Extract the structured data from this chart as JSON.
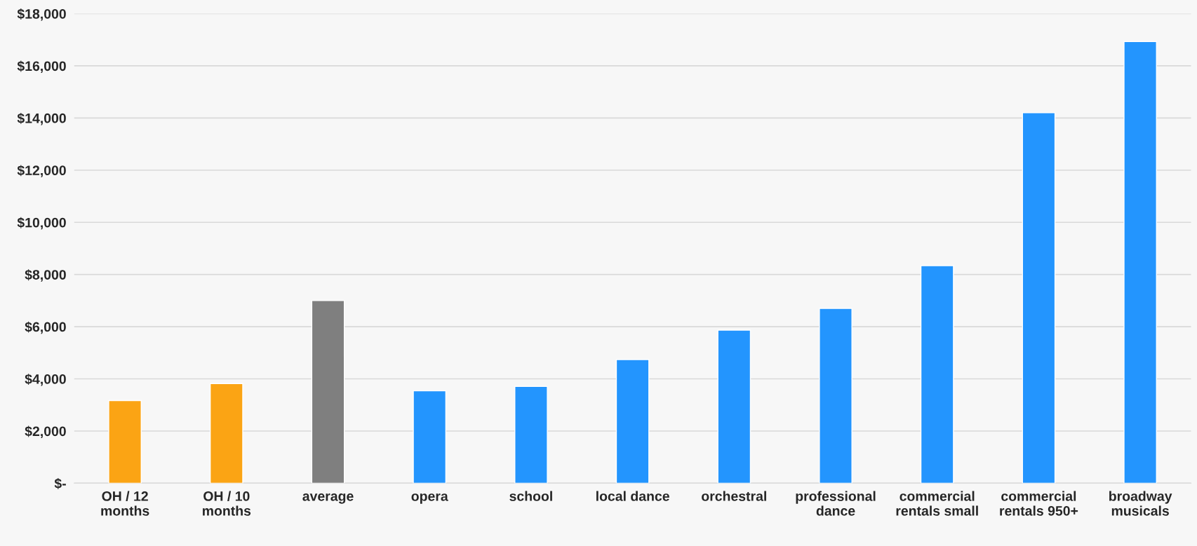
{
  "chart_data": {
    "type": "bar",
    "categories": [
      "OH / 12\nmonths",
      "OH / 10\nmonths",
      "average",
      "opera",
      "school",
      "local dance",
      "orchestral",
      "professional\ndance",
      "commercial\nrentals small",
      "commercial\nrentals 950+",
      "broadway\nmusicals"
    ],
    "values": [
      3170,
      3820,
      7000,
      3540,
      3710,
      4740,
      5870,
      6700,
      8340,
      14200,
      16930
    ],
    "colors": [
      "#fba414",
      "#fba414",
      "#7f7f7f",
      "#2395fe",
      "#2395fe",
      "#2395fe",
      "#2395fe",
      "#2395fe",
      "#2395fe",
      "#2395fe",
      "#2395fe"
    ],
    "ylim": [
      0,
      18000
    ],
    "yticks": [
      {
        "value": 0,
        "label": "$-"
      },
      {
        "value": 2000,
        "label": "$2,000"
      },
      {
        "value": 4000,
        "label": "$4,000"
      },
      {
        "value": 6000,
        "label": "$6,000"
      },
      {
        "value": 8000,
        "label": "$8,000"
      },
      {
        "value": 10000,
        "label": "$10,000"
      },
      {
        "value": 12000,
        "label": "$12,000"
      },
      {
        "value": 14000,
        "label": "$14,000"
      },
      {
        "value": 16000,
        "label": "$16,000"
      },
      {
        "value": 18000,
        "label": "$18,000"
      }
    ],
    "grid": "y"
  }
}
